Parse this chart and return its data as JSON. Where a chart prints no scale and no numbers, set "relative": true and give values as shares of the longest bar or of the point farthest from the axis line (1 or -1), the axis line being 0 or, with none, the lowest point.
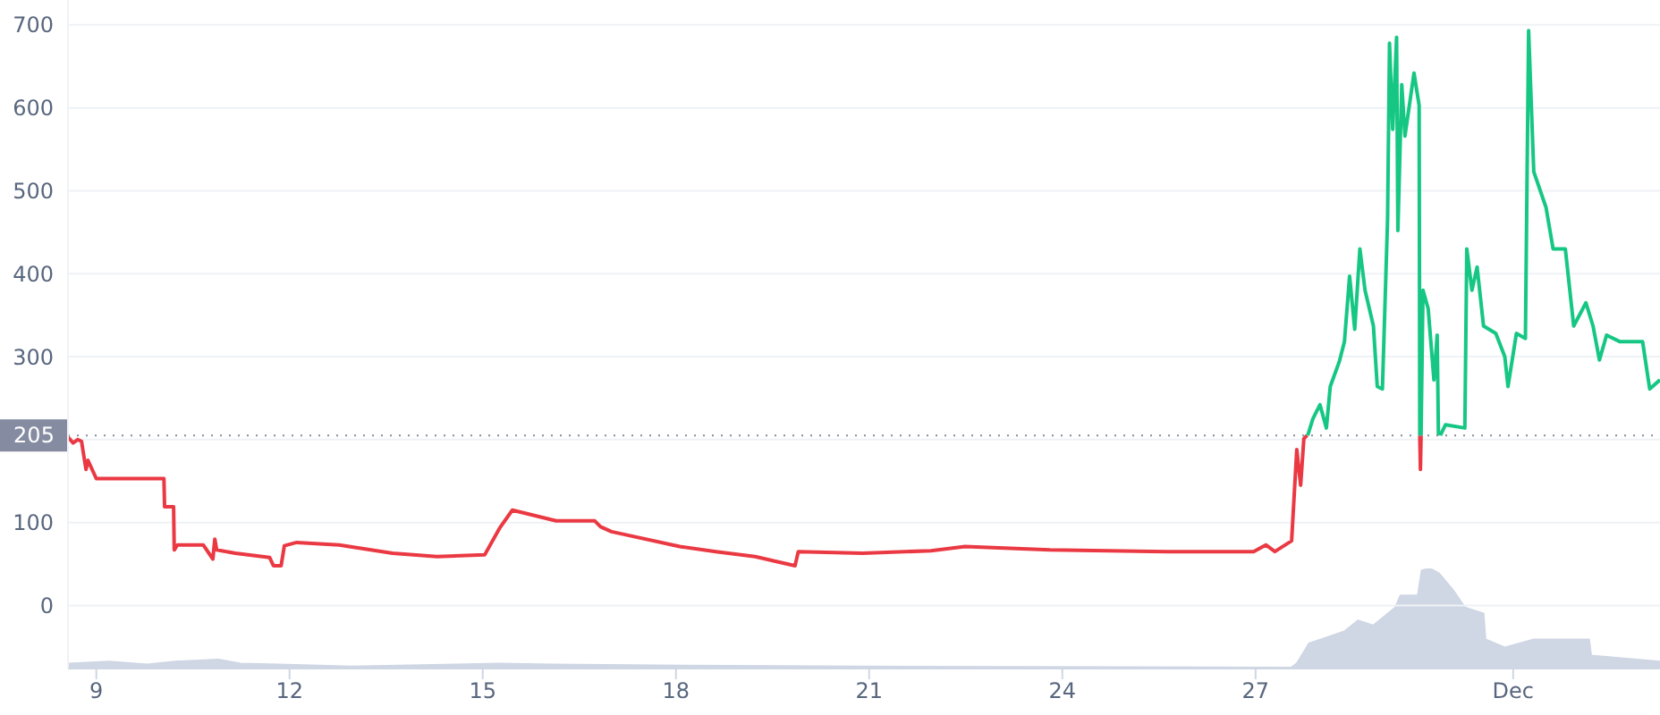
{
  "chart_data": [
    {
      "type": "line",
      "xlim": [
        8.56,
        33.28
      ],
      "xticks": [
        9,
        12,
        15,
        18,
        21,
        24,
        27,
        {
          "value": 31,
          "label": "Dec"
        }
      ],
      "ylim": [
        -76,
        730
      ],
      "yticks": [
        0,
        100,
        {
          "value": 200,
          "label": null
        },
        300,
        400,
        500,
        600,
        700
      ],
      "grid": "y",
      "ref_lines": [
        {
          "axis": "y",
          "value": 205,
          "label": "205",
          "line_style": "dotted",
          "color": "#858ca2"
        }
      ],
      "series": [
        {
          "color": "#ea3943",
          "x": [
            8.56,
            8.64,
            8.71,
            8.77,
            8.84,
            8.87,
            9.0,
            10.05,
            10.06,
            10.2,
            10.21,
            10.26,
            10.66,
            10.81,
            10.84,
            10.87,
            11.16,
            11.69,
            11.75,
            11.87,
            11.92,
            12.11,
            12.77,
            13.6,
            14.29,
            15.03,
            15.26,
            15.46,
            16.14,
            16.74,
            16.83,
            17.0,
            18.06,
            18.62,
            19.23,
            19.62,
            19.85,
            19.9,
            20.9,
            21.96,
            22.49,
            23.81,
            25.63,
            26.97,
            27.16,
            27.3,
            27.56,
            27.64,
            27.7,
            27.75,
            27.8,
            28.5,
            29.55,
            29.56,
            29.57
          ],
          "values": [
            203,
            196,
            200,
            198,
            164,
            175,
            153,
            153,
            119,
            119,
            67,
            73,
            73,
            56,
            80,
            67,
            63,
            58,
            48,
            48,
            72,
            76,
            73,
            63,
            59,
            61,
            93,
            115,
            102,
            102,
            95,
            89,
            71,
            65,
            59,
            52,
            48,
            65,
            63,
            66,
            71,
            67,
            65,
            65,
            73,
            65,
            78,
            188,
            145,
            201,
            205,
            null,
            205,
            164,
            205
          ]
        },
        {
          "color": "#16c784",
          "x": [
            27.81,
            27.89,
            28.0,
            28.1,
            28.16,
            28.3,
            28.38,
            28.46,
            28.54,
            28.62,
            28.7,
            28.83,
            28.89,
            28.97,
            29.05,
            29.08,
            29.13,
            29.19,
            29.21,
            29.27,
            29.32,
            29.46,
            29.54,
            29.55,
            29.56,
            29.57,
            29.6,
            29.68,
            29.77,
            29.82,
            29.84,
            29.855,
            29.87,
            29.95,
            30.25,
            30.28,
            30.36,
            30.44,
            30.54,
            30.73,
            30.87,
            30.92,
            31.05,
            31.19,
            31.24,
            31.32,
            31.51,
            31.62,
            31.81,
            31.94,
            32.13,
            32.24,
            32.34,
            32.45,
            32.66,
            33.01,
            33.12,
            33.28
          ],
          "values": [
            205,
            225,
            242,
            214,
            264,
            294,
            318,
            397,
            333,
            430,
            380,
            337,
            264,
            261,
            466,
            678,
            574,
            685,
            452,
            628,
            566,
            642,
            603,
            205,
            null,
            205,
            380,
            358,
            272,
            326,
            205,
            null,
            205,
            218,
            214,
            430,
            380,
            408,
            337,
            328,
            300,
            264,
            328,
            322,
            693,
            523,
            480,
            430,
            430,
            337,
            365,
            337,
            296,
            326,
            318,
            318,
            261,
            272
          ]
        }
      ]
    },
    {
      "type": "area",
      "relative": true,
      "xlim": [
        8.56,
        33.28
      ],
      "series": [
        {
          "color": "#cfd6e4",
          "x": [
            8.56,
            9.2,
            9.79,
            10.22,
            10.89,
            11.24,
            11.83,
            12.97,
            15.26,
            16.11,
            18.11,
            20.92,
            27.56,
            27.64,
            27.83,
            28.38,
            28.59,
            28.83,
            29.17,
            29.25,
            29.52,
            29.58,
            29.71,
            29.85,
            30.06,
            30.25,
            30.54,
            30.57,
            30.87,
            31.32,
            32.18,
            32.21,
            33.28
          ],
          "values": [
            0.05,
            0.07,
            0.04,
            0.07,
            0.09,
            0.05,
            0.04,
            0.02,
            0.05,
            0.04,
            0.03,
            0.02,
            0.01,
            0.05,
            0.25,
            0.37,
            0.48,
            0.43,
            0.61,
            0.73,
            0.73,
            0.98,
            1,
            0.95,
            0.79,
            0.61,
            0.55,
            0.29,
            0.21,
            0.29,
            0.29,
            0.13,
            0.07
          ]
        }
      ]
    }
  ]
}
